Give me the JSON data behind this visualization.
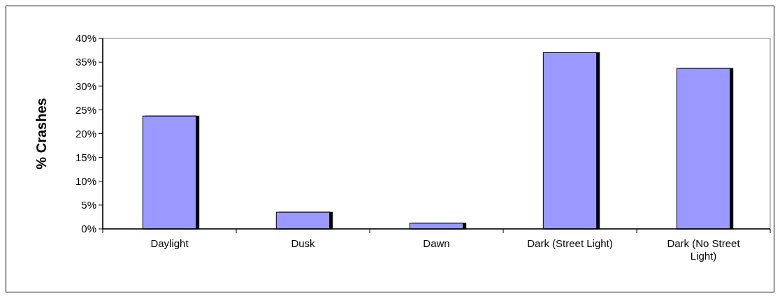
{
  "chart_data": {
    "type": "bar",
    "ylabel": "% Crashes",
    "categories": [
      "Daylight",
      "Dusk",
      "Dawn",
      "Dark (Street Light)",
      "Dark (No Street Light)"
    ],
    "values": [
      23.7,
      3.5,
      1.2,
      37.0,
      33.7
    ],
    "color": "#9999ff",
    "ylim": [
      0,
      40
    ],
    "yticks": [
      {
        "value": 0,
        "label": "0%"
      },
      {
        "value": 5,
        "label": "5%"
      },
      {
        "value": 10,
        "label": "10%"
      },
      {
        "value": 15,
        "label": "15%"
      },
      {
        "value": 20,
        "label": "20%"
      },
      {
        "value": 25,
        "label": "25%"
      },
      {
        "value": 30,
        "label": "30%"
      },
      {
        "value": 35,
        "label": "35%"
      },
      {
        "value": 40,
        "label": "40%"
      }
    ],
    "grid": false
  }
}
